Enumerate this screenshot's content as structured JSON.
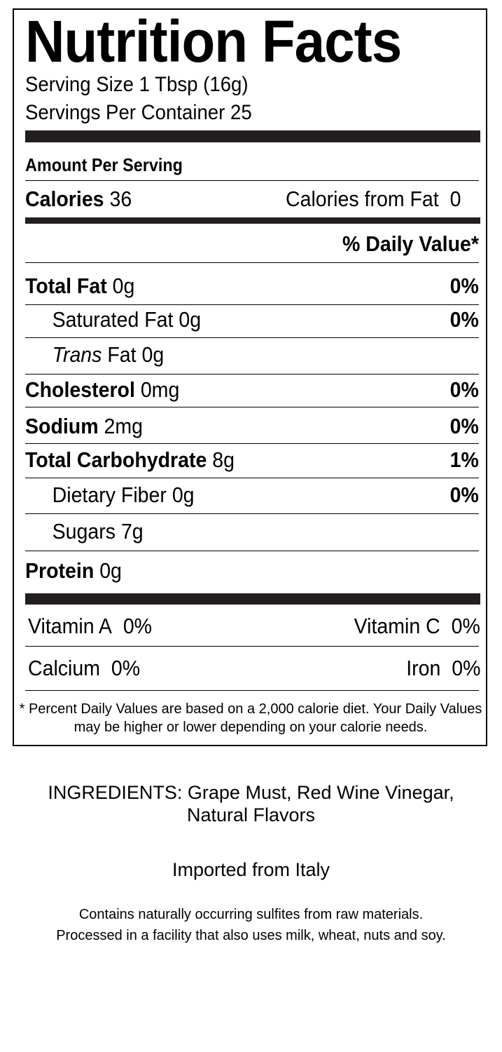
{
  "title": "Nutrition Facts",
  "serving_size": "Serving Size 1 Tbsp (16g)",
  "servings_per_container": "Servings Per Container 25",
  "amount_per_serving": "Amount Per Serving",
  "calories": {
    "label": "Calories",
    "value": "36",
    "from_fat_label": "Calories from Fat",
    "from_fat_value": "0"
  },
  "daily_value_header": "% Daily Value*",
  "nutrients": [
    {
      "label": "Total Fat",
      "amount": "0g",
      "dv": "0%"
    },
    {
      "label": "Saturated Fat",
      "amount": "0g",
      "dv": "0%"
    },
    {
      "label": "Trans",
      "label_rest": "Fat",
      "amount": "0g",
      "dv": ""
    },
    {
      "label": "Cholesterol",
      "amount": "0mg",
      "dv": "0%"
    },
    {
      "label": "Sodium",
      "amount": "2mg",
      "dv": "0%"
    },
    {
      "label": "Total Carbohydrate",
      "amount": "8g",
      "dv": "1%"
    },
    {
      "label": "Dietary Fiber",
      "amount": "0g",
      "dv": "0%"
    },
    {
      "label": "Sugars",
      "amount": "7g",
      "dv": ""
    },
    {
      "label": "Protein",
      "amount": "0g",
      "dv": ""
    }
  ],
  "vitamins": [
    {
      "label": "Vitamin A",
      "value": "0%"
    },
    {
      "label": "Vitamin C",
      "value": "0%"
    },
    {
      "label": "Calcium",
      "value": "0%"
    },
    {
      "label": "Iron",
      "value": "0%"
    }
  ],
  "footnote": "* Percent Daily Values are based on a 2,000 calorie diet. Your Daily Values may be higher or lower depending on your calorie needs.",
  "ingredients": "INGREDIENTS: Grape Must, Red Wine Vinegar, Natural Flavors",
  "origin": "Imported from Italy",
  "allergens_1": "Contains naturally occurring sulfites from raw materials.",
  "allergens_2": "Processed in a facility that also uses milk, wheat, nuts and soy."
}
